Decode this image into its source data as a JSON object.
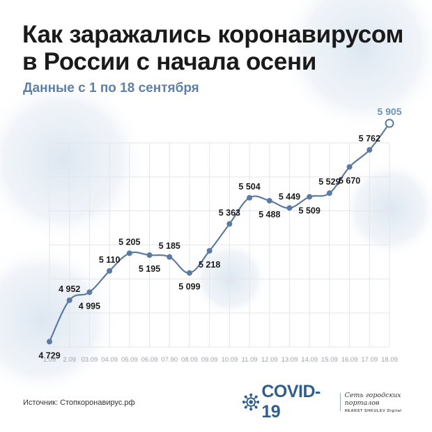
{
  "header": {
    "title_line1": "Как заражались коронавирусом",
    "title_line2": "в России с начала осени",
    "subtitle": "Данные с 1 по 18 сентября"
  },
  "footer": {
    "source": "Источник: Стопкоронавирус.рф",
    "logo_text": "COVID-19",
    "network_line1": "Сеть городских порталов",
    "network_line2": "HEARST SHKULEV Digital"
  },
  "colors": {
    "line": "#5b7ba3",
    "subtitle": "#5e7fa6",
    "last_label": "#6d8fb7",
    "grid": "#e3e6ea",
    "tick": "#9aa3ad",
    "logo": "#2f5d8e"
  },
  "chart_data": {
    "type": "line",
    "categories": [
      "1.09",
      "2.09",
      "03.09",
      "04.09",
      "05.09",
      "06.09",
      "07.90",
      "08.09",
      "09.09",
      "10.09",
      "11.09",
      "12.09",
      "13.09",
      "14.09",
      "15.09",
      "16.09",
      "17.09",
      "18.09"
    ],
    "values": [
      4729,
      4952,
      4995,
      5110,
      5205,
      5195,
      5185,
      5099,
      5218,
      5363,
      5504,
      5488,
      5449,
      5509,
      5529,
      5670,
      5762,
      5905
    ],
    "value_labels": [
      "4 729",
      "4 952",
      "4 995",
      "5 110",
      "5 205",
      "5 195",
      "5 185",
      "5 099",
      "5 218",
      "5 363",
      "5 504",
      "5 488",
      "5 449",
      "5 509",
      "5 529",
      "5 670",
      "5 762",
      "5 905"
    ],
    "label_positions": [
      "below",
      "above",
      "below",
      "above",
      "above",
      "below",
      "above",
      "below",
      "below",
      "above",
      "above",
      "below",
      "above",
      "below",
      "above",
      "below",
      "above",
      "above"
    ],
    "ylim": [
      4700,
      5950
    ],
    "grid": true,
    "legend": "none",
    "xlabel": "",
    "ylabel": ""
  }
}
